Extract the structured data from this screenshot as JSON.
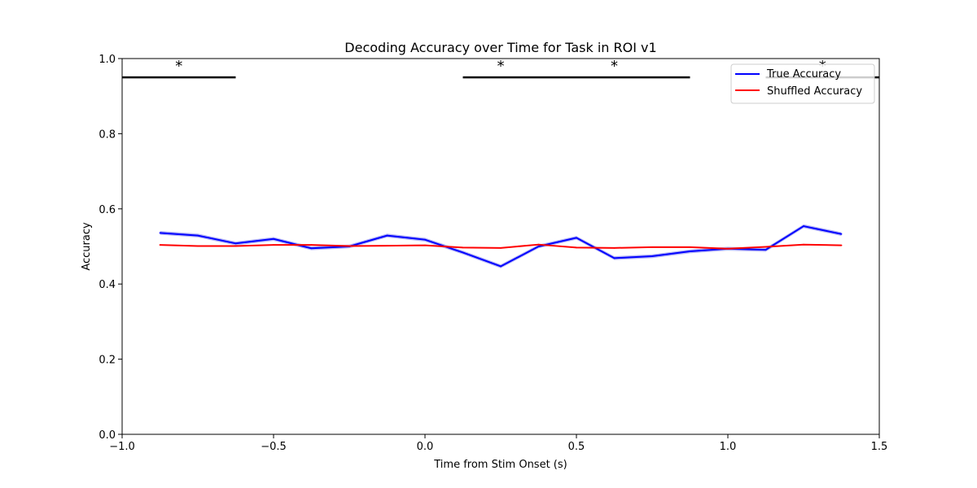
{
  "chart_data": {
    "type": "line",
    "title": "Decoding Accuracy over Time for Task in ROI v1",
    "xlabel": "Time from Stim Onset (s)",
    "ylabel": "Accuracy",
    "xlim": [
      -1.0,
      1.5
    ],
    "ylim": [
      0.0,
      1.0
    ],
    "xticks": [
      -1.0,
      -0.5,
      0.0,
      0.5,
      1.0,
      1.5
    ],
    "xtick_labels": [
      "−1.0",
      "−0.5",
      "0.0",
      "0.5",
      "1.0",
      "1.5"
    ],
    "yticks": [
      0.0,
      0.2,
      0.4,
      0.6,
      0.8,
      1.0
    ],
    "ytick_labels": [
      "0.0",
      "0.2",
      "0.4",
      "0.6",
      "0.8",
      "1.0"
    ],
    "grid": false,
    "legend_position": "top-right",
    "x": [
      -0.875,
      -0.75,
      -0.625,
      -0.5,
      -0.375,
      -0.25,
      -0.125,
      0.0,
      0.125,
      0.25,
      0.375,
      0.5,
      0.625,
      0.75,
      0.875,
      1.0,
      1.125,
      1.25,
      1.375
    ],
    "series": [
      {
        "name": "True Accuracy",
        "color": "#0000ff",
        "band_color": "#7878ee",
        "values": [
          0.536,
          0.529,
          0.508,
          0.52,
          0.495,
          0.5,
          0.529,
          0.518,
          0.484,
          0.447,
          0.5,
          0.523,
          0.469,
          0.474,
          0.487,
          0.494,
          0.491,
          0.554,
          0.533
        ],
        "band_half_width": 0.005
      },
      {
        "name": "Shuffled Accuracy",
        "color": "#ff0000",
        "values": [
          0.504,
          0.501,
          0.501,
          0.504,
          0.504,
          0.501,
          0.502,
          0.503,
          0.497,
          0.496,
          0.505,
          0.497,
          0.496,
          0.498,
          0.498,
          0.494,
          0.499,
          0.505,
          0.503
        ]
      }
    ],
    "significance": {
      "line_y": 0.95,
      "star_y": 0.985,
      "marker": "*",
      "color": "#000000",
      "segments": [
        [
          -1.0,
          -0.625
        ],
        [
          0.125,
          0.375
        ],
        [
          0.375,
          0.875
        ],
        [
          1.125,
          1.5
        ]
      ],
      "stars_x": [
        -0.8125,
        0.25,
        0.625,
        1.3125
      ]
    }
  }
}
